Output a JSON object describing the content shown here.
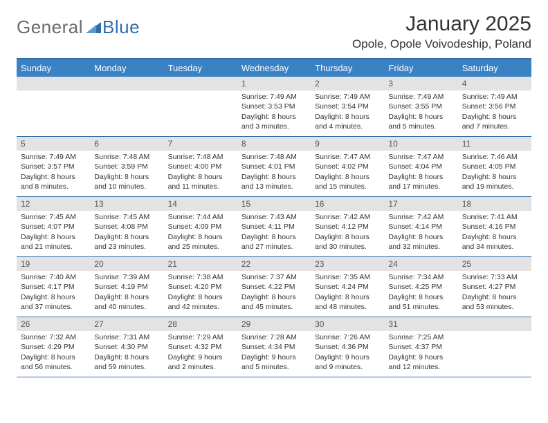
{
  "logo": {
    "general": "General",
    "blue": "Blue"
  },
  "title": "January 2025",
  "location": "Opole, Opole Voivodeship, Poland",
  "colors": {
    "header_bg": "#3b82c4",
    "border": "#2f6fa8",
    "daynum_bg": "#e3e3e3",
    "logo_gray": "#6b6b6b",
    "logo_blue": "#2f6fa8"
  },
  "dayHeaders": [
    "Sunday",
    "Monday",
    "Tuesday",
    "Wednesday",
    "Thursday",
    "Friday",
    "Saturday"
  ],
  "weeks": [
    [
      {
        "n": "",
        "lines": []
      },
      {
        "n": "",
        "lines": []
      },
      {
        "n": "",
        "lines": []
      },
      {
        "n": "1",
        "lines": [
          "Sunrise: 7:49 AM",
          "Sunset: 3:53 PM",
          "Daylight: 8 hours",
          "and 3 minutes."
        ]
      },
      {
        "n": "2",
        "lines": [
          "Sunrise: 7:49 AM",
          "Sunset: 3:54 PM",
          "Daylight: 8 hours",
          "and 4 minutes."
        ]
      },
      {
        "n": "3",
        "lines": [
          "Sunrise: 7:49 AM",
          "Sunset: 3:55 PM",
          "Daylight: 8 hours",
          "and 5 minutes."
        ]
      },
      {
        "n": "4",
        "lines": [
          "Sunrise: 7:49 AM",
          "Sunset: 3:56 PM",
          "Daylight: 8 hours",
          "and 7 minutes."
        ]
      }
    ],
    [
      {
        "n": "5",
        "lines": [
          "Sunrise: 7:49 AM",
          "Sunset: 3:57 PM",
          "Daylight: 8 hours",
          "and 8 minutes."
        ]
      },
      {
        "n": "6",
        "lines": [
          "Sunrise: 7:48 AM",
          "Sunset: 3:59 PM",
          "Daylight: 8 hours",
          "and 10 minutes."
        ]
      },
      {
        "n": "7",
        "lines": [
          "Sunrise: 7:48 AM",
          "Sunset: 4:00 PM",
          "Daylight: 8 hours",
          "and 11 minutes."
        ]
      },
      {
        "n": "8",
        "lines": [
          "Sunrise: 7:48 AM",
          "Sunset: 4:01 PM",
          "Daylight: 8 hours",
          "and 13 minutes."
        ]
      },
      {
        "n": "9",
        "lines": [
          "Sunrise: 7:47 AM",
          "Sunset: 4:02 PM",
          "Daylight: 8 hours",
          "and 15 minutes."
        ]
      },
      {
        "n": "10",
        "lines": [
          "Sunrise: 7:47 AM",
          "Sunset: 4:04 PM",
          "Daylight: 8 hours",
          "and 17 minutes."
        ]
      },
      {
        "n": "11",
        "lines": [
          "Sunrise: 7:46 AM",
          "Sunset: 4:05 PM",
          "Daylight: 8 hours",
          "and 19 minutes."
        ]
      }
    ],
    [
      {
        "n": "12",
        "lines": [
          "Sunrise: 7:45 AM",
          "Sunset: 4:07 PM",
          "Daylight: 8 hours",
          "and 21 minutes."
        ]
      },
      {
        "n": "13",
        "lines": [
          "Sunrise: 7:45 AM",
          "Sunset: 4:08 PM",
          "Daylight: 8 hours",
          "and 23 minutes."
        ]
      },
      {
        "n": "14",
        "lines": [
          "Sunrise: 7:44 AM",
          "Sunset: 4:09 PM",
          "Daylight: 8 hours",
          "and 25 minutes."
        ]
      },
      {
        "n": "15",
        "lines": [
          "Sunrise: 7:43 AM",
          "Sunset: 4:11 PM",
          "Daylight: 8 hours",
          "and 27 minutes."
        ]
      },
      {
        "n": "16",
        "lines": [
          "Sunrise: 7:42 AM",
          "Sunset: 4:12 PM",
          "Daylight: 8 hours",
          "and 30 minutes."
        ]
      },
      {
        "n": "17",
        "lines": [
          "Sunrise: 7:42 AM",
          "Sunset: 4:14 PM",
          "Daylight: 8 hours",
          "and 32 minutes."
        ]
      },
      {
        "n": "18",
        "lines": [
          "Sunrise: 7:41 AM",
          "Sunset: 4:16 PM",
          "Daylight: 8 hours",
          "and 34 minutes."
        ]
      }
    ],
    [
      {
        "n": "19",
        "lines": [
          "Sunrise: 7:40 AM",
          "Sunset: 4:17 PM",
          "Daylight: 8 hours",
          "and 37 minutes."
        ]
      },
      {
        "n": "20",
        "lines": [
          "Sunrise: 7:39 AM",
          "Sunset: 4:19 PM",
          "Daylight: 8 hours",
          "and 40 minutes."
        ]
      },
      {
        "n": "21",
        "lines": [
          "Sunrise: 7:38 AM",
          "Sunset: 4:20 PM",
          "Daylight: 8 hours",
          "and 42 minutes."
        ]
      },
      {
        "n": "22",
        "lines": [
          "Sunrise: 7:37 AM",
          "Sunset: 4:22 PM",
          "Daylight: 8 hours",
          "and 45 minutes."
        ]
      },
      {
        "n": "23",
        "lines": [
          "Sunrise: 7:35 AM",
          "Sunset: 4:24 PM",
          "Daylight: 8 hours",
          "and 48 minutes."
        ]
      },
      {
        "n": "24",
        "lines": [
          "Sunrise: 7:34 AM",
          "Sunset: 4:25 PM",
          "Daylight: 8 hours",
          "and 51 minutes."
        ]
      },
      {
        "n": "25",
        "lines": [
          "Sunrise: 7:33 AM",
          "Sunset: 4:27 PM",
          "Daylight: 8 hours",
          "and 53 minutes."
        ]
      }
    ],
    [
      {
        "n": "26",
        "lines": [
          "Sunrise: 7:32 AM",
          "Sunset: 4:29 PM",
          "Daylight: 8 hours",
          "and 56 minutes."
        ]
      },
      {
        "n": "27",
        "lines": [
          "Sunrise: 7:31 AM",
          "Sunset: 4:30 PM",
          "Daylight: 8 hours",
          "and 59 minutes."
        ]
      },
      {
        "n": "28",
        "lines": [
          "Sunrise: 7:29 AM",
          "Sunset: 4:32 PM",
          "Daylight: 9 hours",
          "and 2 minutes."
        ]
      },
      {
        "n": "29",
        "lines": [
          "Sunrise: 7:28 AM",
          "Sunset: 4:34 PM",
          "Daylight: 9 hours",
          "and 5 minutes."
        ]
      },
      {
        "n": "30",
        "lines": [
          "Sunrise: 7:26 AM",
          "Sunset: 4:36 PM",
          "Daylight: 9 hours",
          "and 9 minutes."
        ]
      },
      {
        "n": "31",
        "lines": [
          "Sunrise: 7:25 AM",
          "Sunset: 4:37 PM",
          "Daylight: 9 hours",
          "and 12 minutes."
        ]
      },
      {
        "n": "",
        "lines": []
      }
    ]
  ]
}
